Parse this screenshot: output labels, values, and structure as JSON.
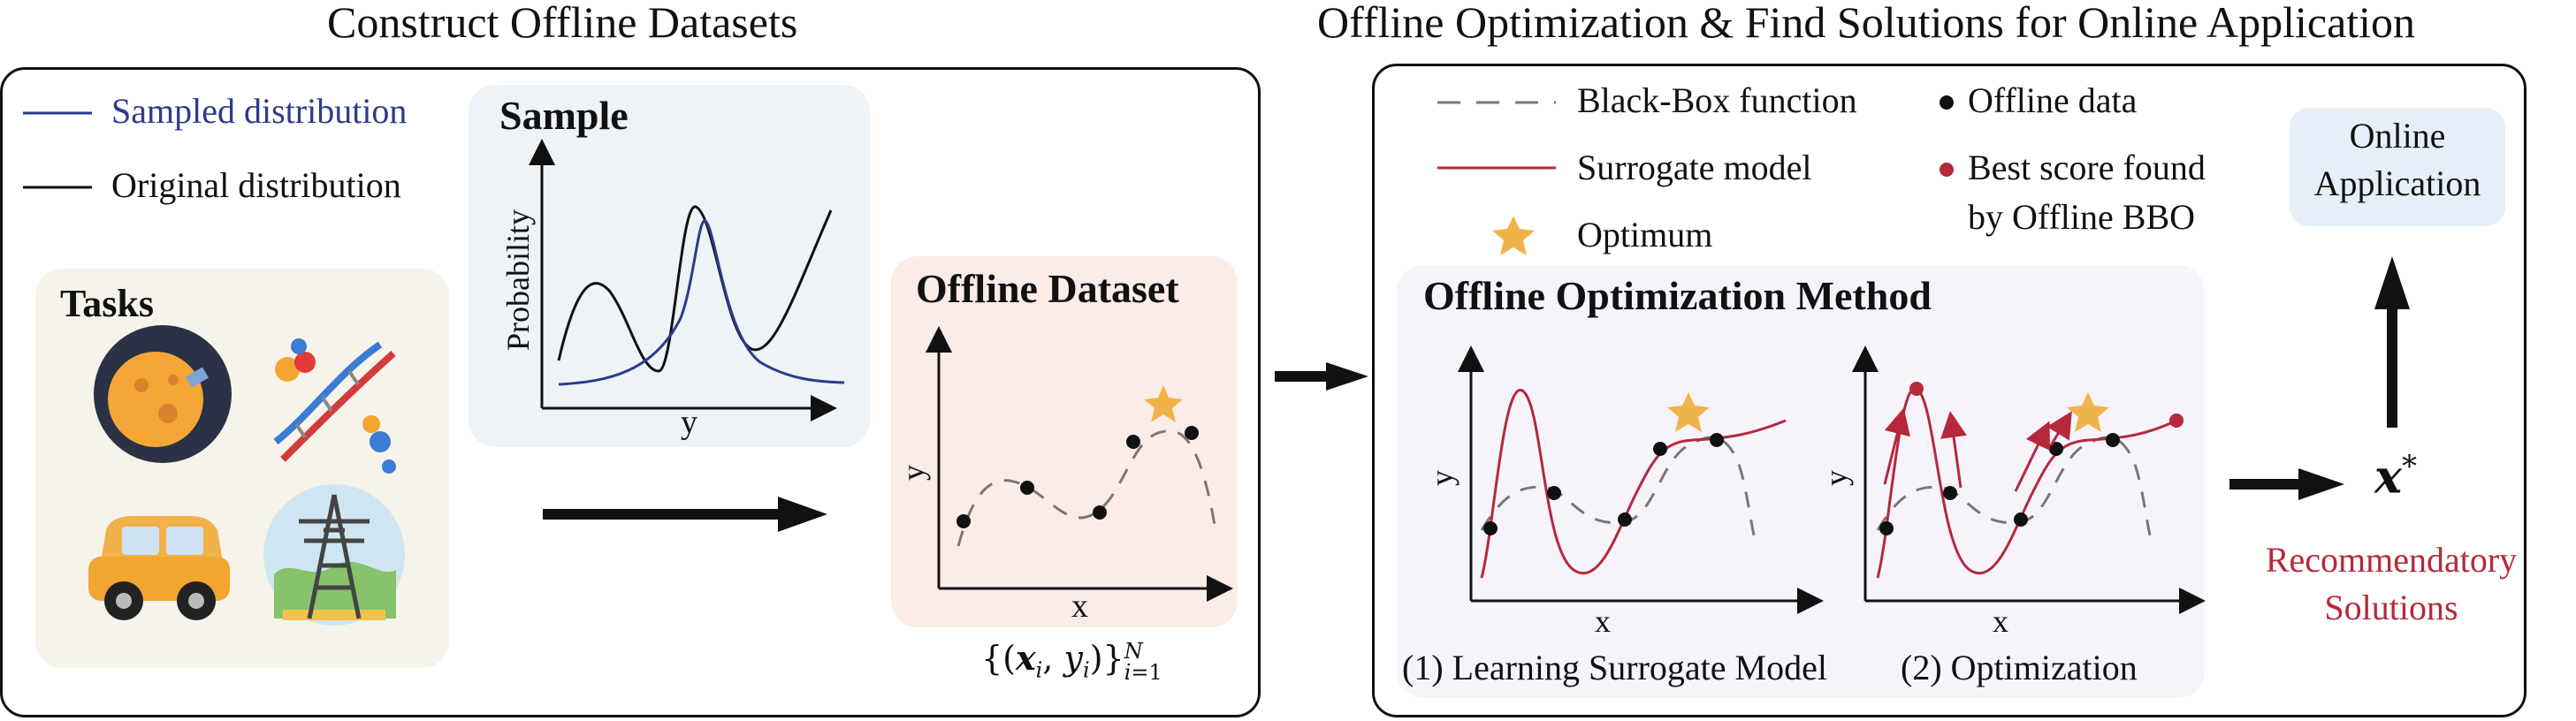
{
  "headings": {
    "left": "Construct Offline Datasets",
    "right": "Offline Optimization & Find Solutions for Online Application"
  },
  "legend_left": {
    "sampled": "Sampled distribution",
    "original": "Original distribution"
  },
  "sample_box": {
    "title": "Sample",
    "ylabel": "Probability",
    "xlabel": "y"
  },
  "tasks_box": {
    "title": "Tasks",
    "icons": [
      "planet-icon",
      "dna-molecule-icon",
      "car-icon",
      "power-tower-icon"
    ]
  },
  "dataset_box": {
    "title": "Offline Dataset",
    "xlabel": "x",
    "ylabel": "y",
    "formula": "{(x_i, y_i)}_{i=1}^N"
  },
  "legend_right": {
    "blackbox": "Black-Box function",
    "surrogate": "Surrogate model",
    "optimum": "Optimum",
    "offline_data": "Offline data",
    "best_line1": "Best score found",
    "best_line2": "by Offline BBO"
  },
  "method_box": {
    "title": "Offline Optimization Method",
    "plot1_caption": "(1) Learning Surrogate Model",
    "plot2_caption": "(2) Optimization",
    "xlabel": "x",
    "ylabel": "y"
  },
  "online_box": {
    "line1": "Online",
    "line2": "Application"
  },
  "solution": {
    "symbol": "x*",
    "line1": "Recommendatory",
    "line2": "Solutions"
  },
  "colors": {
    "sampled": "#2e3a8c",
    "surrogate": "#b5293a",
    "star": "#f0b34a",
    "solutions_text": "#b5293a",
    "sample_bg": "#eef3f8",
    "tasks_bg": "#f6f4ea",
    "dataset_bg": "#fbece8",
    "method_bg": "#f7f3fb",
    "online_bg": "#e6eff7"
  }
}
